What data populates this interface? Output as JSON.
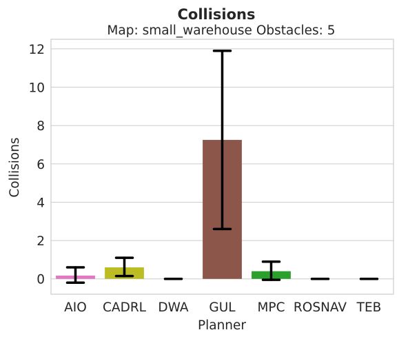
{
  "chart_data": {
    "type": "bar",
    "title": "Collisions",
    "subtitle": "Map: small_warehouse Obstacles: 5",
    "xlabel": "Planner",
    "ylabel": "Collisions",
    "categories": [
      "AIO",
      "CADRL",
      "DWA",
      "GUL",
      "MPC",
      "ROSNAV",
      "TEB"
    ],
    "values": [
      0.17,
      0.6,
      0.0,
      7.25,
      0.4,
      0.0,
      0.0
    ],
    "error_low": [
      -0.2,
      0.15,
      0.0,
      2.6,
      -0.05,
      0.0,
      0.0
    ],
    "error_high": [
      0.6,
      1.1,
      0.0,
      11.9,
      0.9,
      0.0,
      0.0
    ],
    "colors": [
      "#e377c2",
      "#bcbd22",
      "#4c72b0",
      "#8c564b",
      "#2ca02c",
      "#17becf",
      "#7f7f7f"
    ],
    "yticks": [
      0,
      2,
      4,
      6,
      8,
      10,
      12
    ],
    "ylim": [
      -0.8,
      12.5
    ],
    "grid": true,
    "legend": "none"
  }
}
